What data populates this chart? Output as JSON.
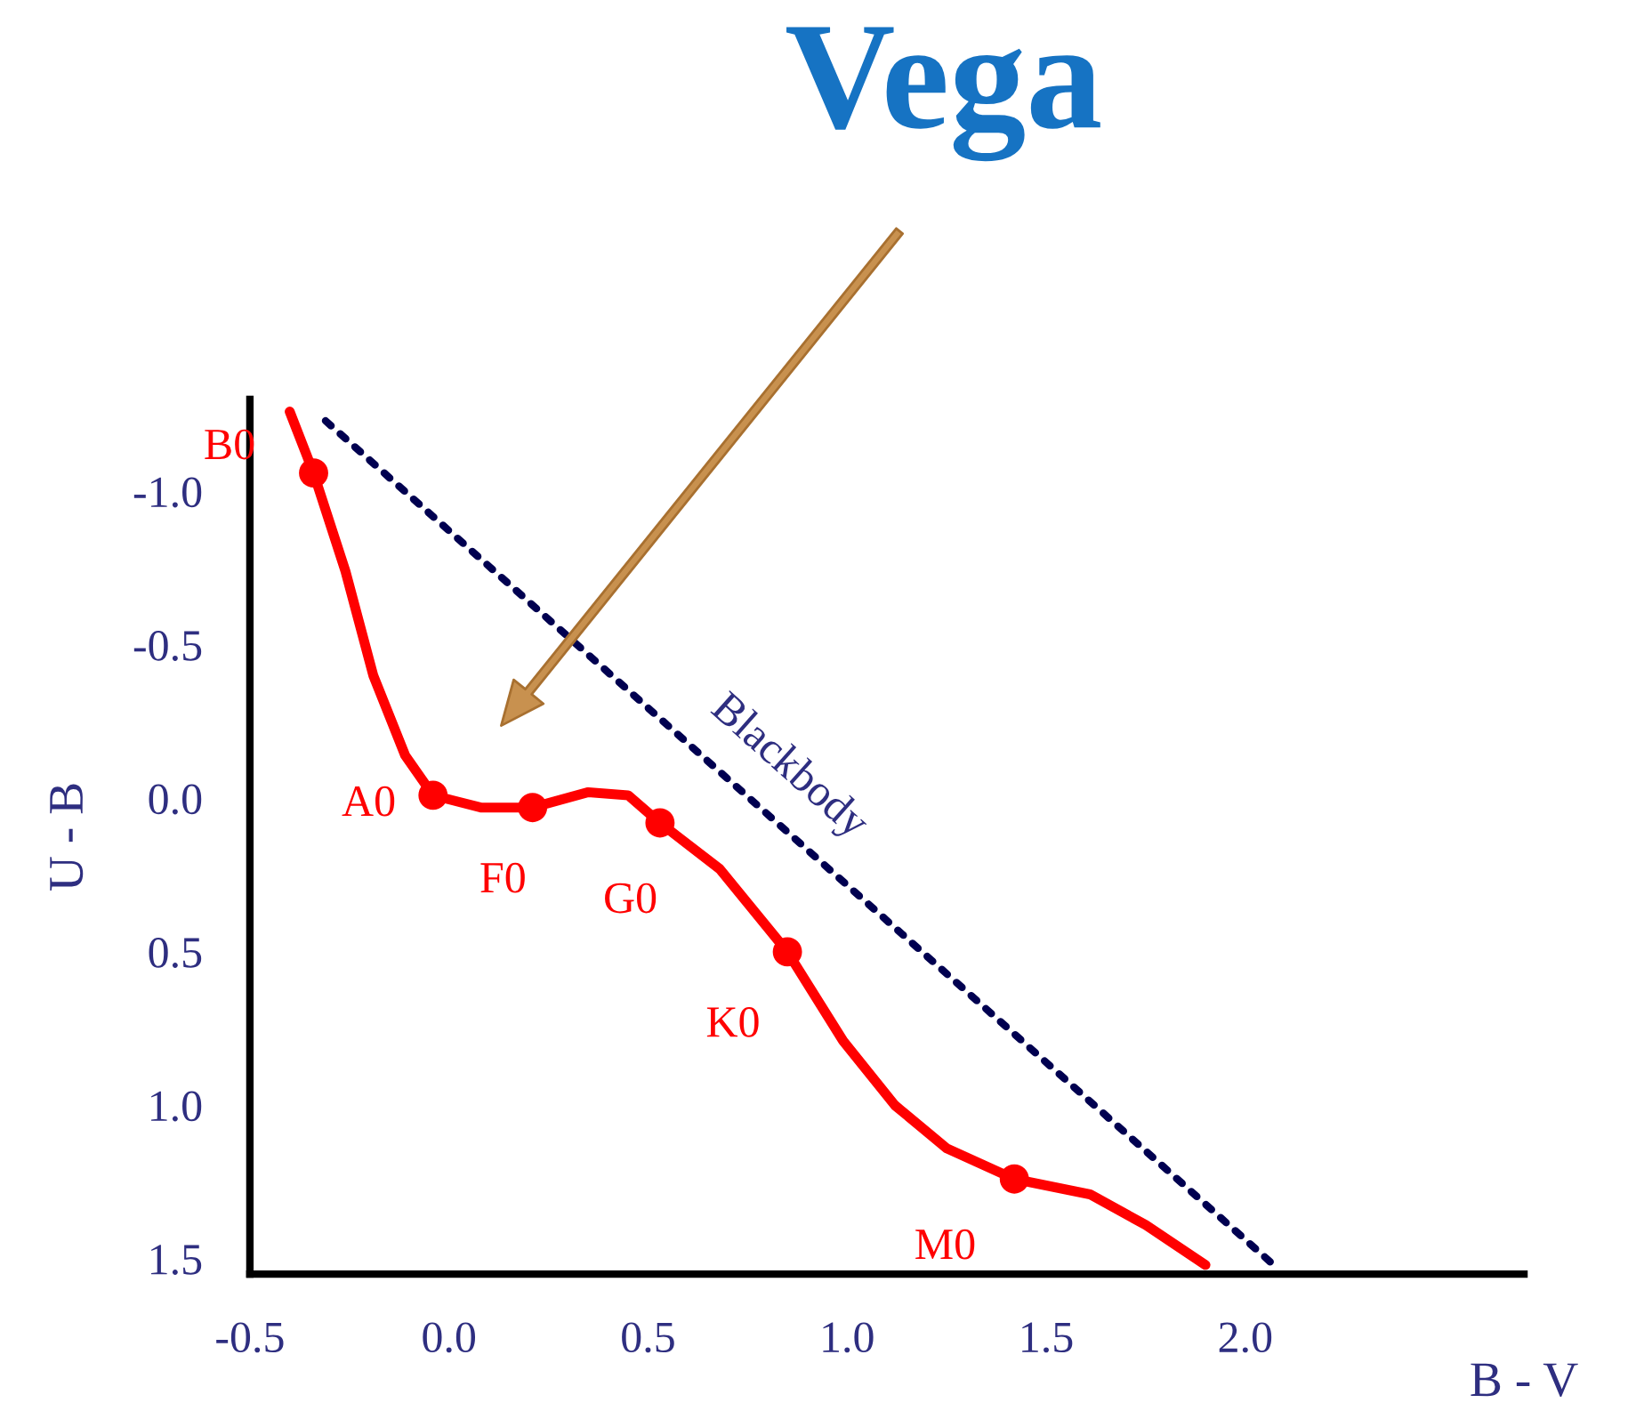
{
  "chart_data": {
    "type": "line",
    "xlabel": "B - V",
    "ylabel": "U - B",
    "xlim": [
      -0.5,
      2.7
    ],
    "ylim": [
      1.55,
      -1.3
    ],
    "xticks": [
      {
        "value": -0.5,
        "label": "-0.5"
      },
      {
        "value": 0.0,
        "label": "0.0"
      },
      {
        "value": 0.5,
        "label": "0.5"
      },
      {
        "value": 1.0,
        "label": "1.0"
      },
      {
        "value": 1.5,
        "label": "1.5"
      },
      {
        "value": 2.0,
        "label": "2.0"
      }
    ],
    "yticks": [
      {
        "value": -1.0,
        "label": "-1.0"
      },
      {
        "value": -0.5,
        "label": "-0.5"
      },
      {
        "value": 0.0,
        "label": "0.0"
      },
      {
        "value": 0.5,
        "label": "0.5"
      },
      {
        "value": 1.0,
        "label": "1.0"
      },
      {
        "value": 1.5,
        "label": "1.5"
      }
    ],
    "grid": false,
    "legend": false,
    "series": [
      {
        "color": "#ff0000",
        "line_style": "solid",
        "marker": "none",
        "x": [
          -0.4,
          -0.34,
          -0.26,
          -0.19,
          -0.11,
          -0.04,
          0.08,
          0.21,
          0.35,
          0.45,
          0.53,
          0.68,
          0.85,
          0.99,
          1.12,
          1.25,
          1.42,
          1.61,
          1.75,
          1.9
        ],
        "values": [
          -1.26,
          -1.06,
          -0.74,
          -0.4,
          -0.14,
          -0.01,
          0.03,
          0.03,
          -0.02,
          -0.01,
          0.08,
          0.23,
          0.5,
          0.79,
          1.0,
          1.14,
          1.24,
          1.29,
          1.39,
          1.52
        ]
      },
      {
        "type": "scatter",
        "color": "#ff0000",
        "marker": "circle",
        "x": [
          -0.34,
          -0.04,
          0.21,
          0.53,
          0.85,
          1.42
        ],
        "values": [
          -1.06,
          -0.01,
          0.03,
          0.08,
          0.5,
          1.24
        ]
      },
      {
        "name": "Blackbody",
        "color": "#000050",
        "line_style": "dotted",
        "marker": "none",
        "x": [
          -0.31,
          2.08
        ],
        "values": [
          -1.23,
          1.53
        ]
      }
    ],
    "annotations": [
      {
        "text": "B0",
        "x": -0.34,
        "y": -1.06
      },
      {
        "text": "A0",
        "x": -0.04,
        "y": -0.01
      },
      {
        "text": "F0",
        "x": 0.21,
        "y": 0.03
      },
      {
        "text": "G0",
        "x": 0.53,
        "y": 0.08
      },
      {
        "text": "K0",
        "x": 0.85,
        "y": 0.5
      },
      {
        "text": "M0",
        "x": 1.42,
        "y": 1.24
      },
      "Vega"
    ]
  }
}
